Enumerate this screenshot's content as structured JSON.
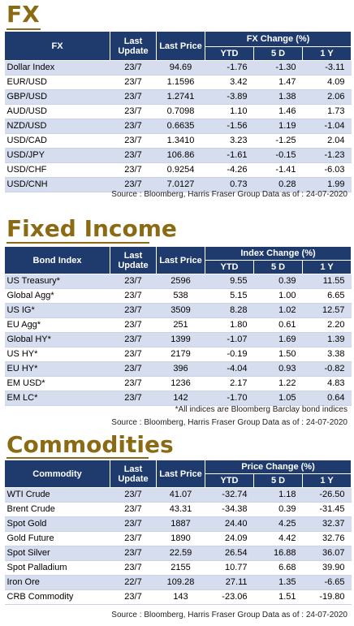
{
  "fx": {
    "title": "FX",
    "headers": {
      "name": "FX",
      "last_update": "Last Update",
      "last_price": "Last Price",
      "group": "FX Change (%)",
      "ytd": "YTD",
      "d5": "5 D",
      "y1": "1 Y"
    },
    "rows": [
      {
        "name": "Dollar Index",
        "update": "23/7",
        "price": "94.69",
        "ytd": "-1.76",
        "d5": "-1.30",
        "y1": "-3.11"
      },
      {
        "name": "EUR/USD",
        "update": "23/7",
        "price": "1.1596",
        "ytd": "3.42",
        "d5": "1.47",
        "y1": "4.09"
      },
      {
        "name": "GBP/USD",
        "update": "23/7",
        "price": "1.2741",
        "ytd": "-3.89",
        "d5": "1.38",
        "y1": "2.06"
      },
      {
        "name": "AUD/USD",
        "update": "23/7",
        "price": "0.7098",
        "ytd": "1.10",
        "d5": "1.46",
        "y1": "1.73"
      },
      {
        "name": "NZD/USD",
        "update": "23/7",
        "price": "0.6635",
        "ytd": "-1.56",
        "d5": "1.19",
        "y1": "-1.04"
      },
      {
        "name": "USD/CAD",
        "update": "23/7",
        "price": "1.3410",
        "ytd": "3.23",
        "d5": "-1.25",
        "y1": "2.04"
      },
      {
        "name": "USD/JPY",
        "update": "23/7",
        "price": "106.86",
        "ytd": "-1.61",
        "d5": "-0.15",
        "y1": "-1.23"
      },
      {
        "name": "USD/CHF",
        "update": "23/7",
        "price": "0.9254",
        "ytd": "-4.26",
        "d5": "-1.41",
        "y1": "-6.03"
      },
      {
        "name": "USD/CNH",
        "update": "23/7",
        "price": "7.0127",
        "ytd": "0.73",
        "d5": "0.28",
        "y1": "1.99"
      }
    ],
    "source": "Source : Bloomberg, Harris Fraser Group Data as of : 24-07-2020"
  },
  "fixed_income": {
    "title": "Fixed Income",
    "headers": {
      "name": "Bond Index",
      "last_update": "Last Update",
      "last_price": "Last Price",
      "group": "Index Change (%)",
      "ytd": "YTD",
      "d5": "5 D",
      "y1": "1 Y"
    },
    "rows": [
      {
        "name": "US Treasury*",
        "update": "23/7",
        "price": "2596",
        "ytd": "9.55",
        "d5": "0.39",
        "y1": "11.55"
      },
      {
        "name": "Global Agg*",
        "update": "23/7",
        "price": "538",
        "ytd": "5.15",
        "d5": "1.00",
        "y1": "6.65"
      },
      {
        "name": "US IG*",
        "update": "23/7",
        "price": "3509",
        "ytd": "8.28",
        "d5": "1.02",
        "y1": "12.57"
      },
      {
        "name": "EU Agg*",
        "update": "23/7",
        "price": "251",
        "ytd": "1.80",
        "d5": "0.61",
        "y1": "2.20"
      },
      {
        "name": "Global HY*",
        "update": "23/7",
        "price": "1399",
        "ytd": "-1.07",
        "d5": "1.69",
        "y1": "1.39"
      },
      {
        "name": "US HY*",
        "update": "23/7",
        "price": "2179",
        "ytd": "-0.19",
        "d5": "1.50",
        "y1": "3.38"
      },
      {
        "name": "EU HY*",
        "update": "23/7",
        "price": "396",
        "ytd": "-4.04",
        "d5": "0.93",
        "y1": "-0.82"
      },
      {
        "name": "EM USD*",
        "update": "23/7",
        "price": "1236",
        "ytd": "2.17",
        "d5": "1.22",
        "y1": "4.83"
      },
      {
        "name": "EM LC*",
        "update": "23/7",
        "price": "142",
        "ytd": "-1.70",
        "d5": "1.05",
        "y1": "0.64"
      }
    ],
    "note": "*All indices are Bloomberg Barclay bond indices",
    "source": "Source : Bloomberg, Harris Fraser Group Data as of : 24-07-2020"
  },
  "commodities": {
    "title": "Commodities",
    "headers": {
      "name": "Commodity",
      "last_update": "Last Update",
      "last_price": "Last Price",
      "group": "Price Change (%)",
      "ytd": "YTD",
      "d5": "5 D",
      "y1": "1 Y"
    },
    "rows": [
      {
        "name": "WTI Crude",
        "update": "23/7",
        "price": "41.07",
        "ytd": "-32.74",
        "d5": "1.18",
        "y1": "-26.50"
      },
      {
        "name": "Brent Crude",
        "update": "23/7",
        "price": "43.31",
        "ytd": "-34.38",
        "d5": "0.39",
        "y1": "-31.45"
      },
      {
        "name": "Spot Gold",
        "update": "23/7",
        "price": "1887",
        "ytd": "24.40",
        "d5": "4.25",
        "y1": "32.37"
      },
      {
        "name": "Gold Future",
        "update": "23/7",
        "price": "1890",
        "ytd": "24.09",
        "d5": "4.42",
        "y1": "32.76"
      },
      {
        "name": "Spot Silver",
        "update": "23/7",
        "price": "22.59",
        "ytd": "26.54",
        "d5": "16.88",
        "y1": "36.07"
      },
      {
        "name": "Spot Palladium",
        "update": "23/7",
        "price": "2155",
        "ytd": "10.77",
        "d5": "6.68",
        "y1": "39.90"
      },
      {
        "name": "Iron Ore",
        "update": "22/7",
        "price": "109.28",
        "ytd": "27.11",
        "d5": "1.35",
        "y1": "-6.65"
      },
      {
        "name": "CRB Commodity",
        "update": "23/7",
        "price": "143",
        "ytd": "-23.06",
        "d5": "1.51",
        "y1": "-19.80"
      }
    ],
    "source": "Source : Bloomberg, Harris Fraser Group Data as of : 24-07-2020"
  }
}
